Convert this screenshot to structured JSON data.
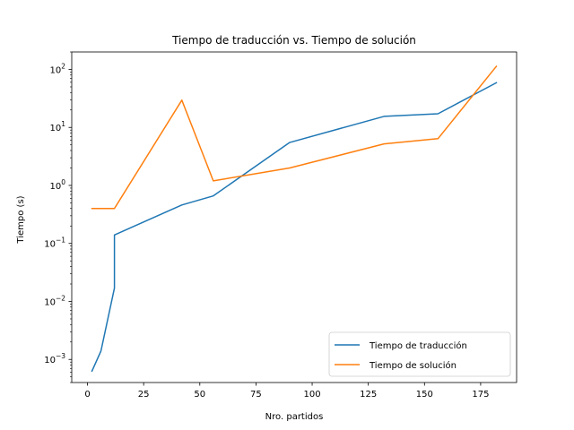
{
  "chart_data": {
    "type": "line",
    "title": "Tiempo de traducción vs. Tiempo de solución",
    "xlabel": "Nro. partidos",
    "ylabel": "Tiempo (s)",
    "xlim": [
      -7,
      191
    ],
    "ylim": [
      0.0004,
      200
    ],
    "yscale": "log",
    "grid": false,
    "legend_position": "lower-right",
    "x_ticks": [
      {
        "value": 0,
        "label": "0"
      },
      {
        "value": 25,
        "label": "25"
      },
      {
        "value": 50,
        "label": "50"
      },
      {
        "value": 75,
        "label": "75"
      },
      {
        "value": 100,
        "label": "100"
      },
      {
        "value": 125,
        "label": "125"
      },
      {
        "value": 150,
        "label": "150"
      },
      {
        "value": 175,
        "label": "175"
      }
    ],
    "y_ticks": [
      {
        "value": 0.001,
        "base": "10",
        "exp": "−3"
      },
      {
        "value": 0.01,
        "base": "10",
        "exp": "−2"
      },
      {
        "value": 0.1,
        "base": "10",
        "exp": "−1"
      },
      {
        "value": 1,
        "base": "10",
        "exp": "0"
      },
      {
        "value": 10,
        "base": "10",
        "exp": "1"
      },
      {
        "value": 100,
        "base": "10",
        "exp": "2"
      }
    ],
    "series": [
      {
        "name": "Tiempo de traducción",
        "color": "#1f77b4",
        "x": [
          2,
          6,
          12,
          12,
          42,
          56,
          90,
          132,
          156,
          182
        ],
        "y": [
          0.00063,
          0.0014,
          0.017,
          0.14,
          0.46,
          0.66,
          5.5,
          15.5,
          17.2,
          59
        ]
      },
      {
        "name": "Tiempo de solución",
        "color": "#ff7f0e",
        "x": [
          2,
          12,
          42,
          56,
          90,
          132,
          156,
          182
        ],
        "y": [
          0.4,
          0.4,
          29.5,
          1.2,
          2.0,
          5.2,
          6.4,
          113
        ]
      }
    ]
  }
}
